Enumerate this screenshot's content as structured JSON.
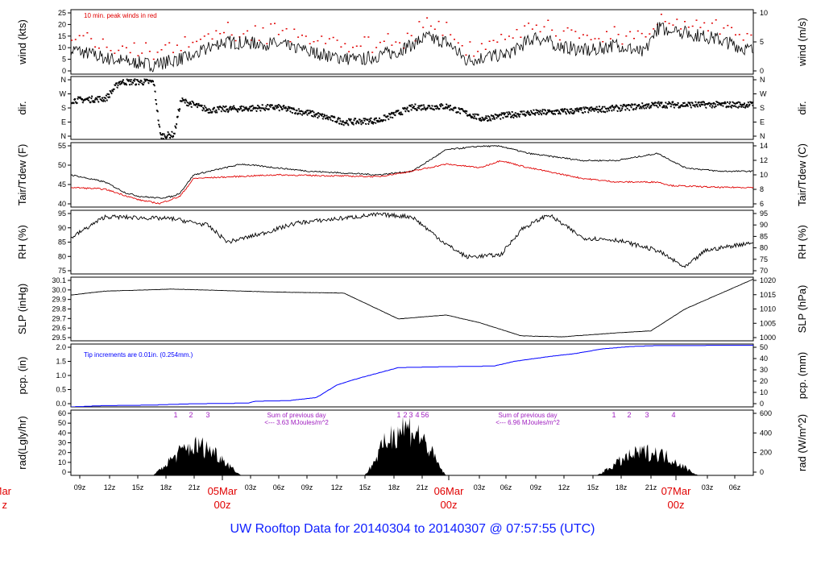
{
  "footer_title": "UW Rooftop Data for 20140304  to  20140307 @ 07:57:55  (UTC)",
  "colors": {
    "black": "#000000",
    "red": "#e00000",
    "blue": "#0000ff",
    "purple": "#a020c0",
    "date": "#e00000"
  },
  "chart_data": [
    {
      "type": "line",
      "panel": "wind",
      "ylabel_left": "wind (kts)",
      "ylabel_right": "wind (m/s)",
      "left_ticks": [
        "0",
        "5",
        "10",
        "15",
        "20",
        "25"
      ],
      "right_ticks": [
        "0",
        "5",
        "10"
      ],
      "ylim": [
        0,
        28
      ],
      "annotation": "10 min. peak winds in red",
      "series_hint": "black = mean wind, red = 10 min. peak"
    },
    {
      "type": "scatter",
      "panel": "direction",
      "ylabel_left": "dir.",
      "ylabel_right": "dir.",
      "left_ticks": [
        "N",
        "E",
        "S",
        "W",
        "N"
      ],
      "right_ticks": [
        "N",
        "E",
        "S",
        "W",
        "N"
      ],
      "ylim": [
        0,
        360
      ]
    },
    {
      "type": "line",
      "panel": "temperature",
      "ylabel_left": "Tair/Tdew (F)",
      "ylabel_right": "Tair/Tdew (C)",
      "left_ticks": [
        "40",
        "45",
        "50",
        "55"
      ],
      "right_ticks": [
        "6",
        "8",
        "10",
        "12",
        "14"
      ],
      "ylim": [
        40,
        58
      ]
    },
    {
      "type": "line",
      "panel": "humidity",
      "ylabel_left": "RH (%)",
      "ylabel_right": "RH (%)",
      "left_ticks": [
        "75",
        "80",
        "85",
        "90",
        "95"
      ],
      "right_ticks": [
        "70",
        "75",
        "80",
        "85",
        "90",
        "95"
      ],
      "ylim": [
        69,
        99
      ]
    },
    {
      "type": "line",
      "panel": "pressure",
      "ylabel_left": "SLP (inHg)",
      "ylabel_right": "SLP (hPa)",
      "left_ticks": [
        "29.5",
        "29.6",
        "29.7",
        "29.8",
        "29.9",
        "30.0",
        "30.1"
      ],
      "right_ticks": [
        "1000",
        "1005",
        "1010",
        "1015",
        "1020"
      ],
      "ylim": [
        29.5,
        30.14
      ]
    },
    {
      "type": "line",
      "panel": "precipitation",
      "ylabel_left": "pcp. (in)",
      "ylabel_right": "pcp. (mm)",
      "left_ticks": [
        "0.0",
        "0.5",
        "1.0",
        "1.5",
        "2.0"
      ],
      "right_ticks": [
        "0",
        "10",
        "20",
        "30",
        "40",
        "50"
      ],
      "ylim": [
        0,
        2.0
      ],
      "annotation": "Tip increments are 0.01in. (0.254mm.)"
    },
    {
      "type": "area",
      "panel": "radiation",
      "ylabel_left": "rad(Lgly/hr)",
      "ylabel_right": "rad (W/m^2)",
      "left_ticks": [
        "0",
        "10",
        "20",
        "30",
        "40",
        "50",
        "60"
      ],
      "right_ticks": [
        "0",
        "200",
        "400",
        "600"
      ],
      "ylim": [
        0,
        64
      ],
      "annotations": [
        {
          "line1": "Sum of previous day",
          "line2": "<--- 3.63 MJoules/m^2"
        },
        {
          "line1": "Sum of previous day",
          "line2": "<--- 6.96 MJoules/m^2"
        }
      ],
      "top_numbers": [
        "1",
        "2",
        "3",
        "1",
        "2",
        "3",
        "4",
        "5",
        "6",
        "1",
        "2",
        "3",
        "4"
      ]
    }
  ],
  "x_axis": {
    "hour_ticks": [
      "09z",
      "12z",
      "15z",
      "18z",
      "21z",
      "03z",
      "06z",
      "09z",
      "12z",
      "15z",
      "18z",
      "21z",
      "03z",
      "06z",
      "09z",
      "12z",
      "15z",
      "18z",
      "21z",
      "03z",
      "06z"
    ],
    "day_labels": [
      {
        "top": "05Mar",
        "bottom": "00z"
      },
      {
        "top": "06Mar",
        "bottom": "00z"
      },
      {
        "top": "07Mar",
        "bottom": "00z"
      }
    ],
    "edge_label_top": "Mar",
    "edge_label_bottom": "z"
  }
}
